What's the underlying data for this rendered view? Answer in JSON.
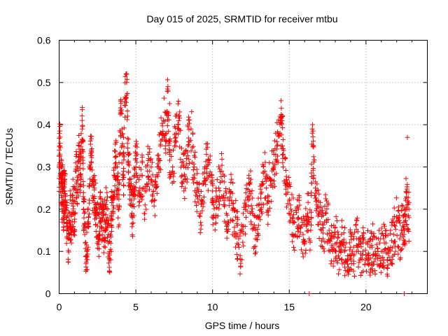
{
  "chart_data": {
    "type": "scatter",
    "title": "Day 015 of 2025, SRMTID for receiver mtbu",
    "xlabel": "GPS time / hours",
    "ylabel": "SRMTID / TECUs",
    "xlim": [
      0,
      24
    ],
    "ylim": [
      0,
      0.6
    ],
    "x_ticks": [
      0,
      5,
      10,
      15,
      20
    ],
    "x_tick_labels": [
      "0",
      "5",
      "10",
      "15",
      "20"
    ],
    "y_ticks": [
      0,
      0.1,
      0.2,
      0.3,
      0.4,
      0.5,
      0.6
    ],
    "y_tick_labels": [
      "0",
      "0.1",
      "0.2",
      "0.3",
      "0.4",
      "0.5",
      "0.6"
    ],
    "grid": true,
    "marker": "+",
    "marker_color": "#ff0000",
    "series": [
      {
        "name": "SRMTID",
        "x": [
          0.0,
          0.05,
          0.1,
          0.15,
          0.2,
          0.25,
          0.3,
          0.35,
          0.4,
          0.5,
          0.6,
          0.7,
          0.8,
          0.9,
          1.0,
          1.1,
          1.2,
          1.3,
          1.4,
          1.5,
          1.55,
          1.6,
          1.7,
          1.8,
          1.9,
          2.0,
          2.1,
          2.2,
          2.3,
          2.4,
          2.5,
          2.6,
          2.7,
          2.8,
          2.9,
          3.0,
          3.1,
          3.2,
          3.3,
          3.4,
          3.5,
          3.6,
          3.7,
          3.8,
          3.9,
          4.0,
          4.1,
          4.2,
          4.3,
          4.4,
          4.5,
          4.6,
          4.7,
          4.8,
          4.9,
          5.0,
          5.2,
          5.4,
          5.6,
          5.8,
          6.0,
          6.2,
          6.4,
          6.6,
          6.8,
          7.0,
          7.1,
          7.2,
          7.4,
          7.6,
          7.8,
          8.0,
          8.2,
          8.4,
          8.6,
          8.8,
          9.0,
          9.2,
          9.4,
          9.6,
          9.8,
          10.0,
          10.2,
          10.4,
          10.6,
          10.8,
          11.0,
          11.2,
          11.4,
          11.6,
          11.8,
          12.0,
          12.2,
          12.4,
          12.6,
          12.8,
          13.0,
          13.2,
          13.4,
          13.6,
          13.8,
          14.0,
          14.2,
          14.4,
          14.5,
          14.6,
          14.8,
          15.0,
          15.2,
          15.4,
          15.6,
          15.8,
          16.0,
          16.2,
          16.4,
          16.5,
          16.6,
          16.8,
          17.0,
          17.2,
          17.4,
          17.6,
          17.8,
          18.0,
          18.2,
          18.4,
          18.6,
          18.8,
          19.0,
          19.2,
          19.4,
          19.6,
          19.8,
          20.0,
          20.2,
          20.4,
          20.6,
          20.8,
          21.0,
          21.2,
          21.4,
          21.6,
          21.8,
          22.0,
          22.2,
          22.4,
          22.5,
          22.6,
          22.7,
          22.8
        ],
        "y": [
          0.3,
          0.35,
          0.24,
          0.28,
          0.21,
          0.26,
          0.19,
          0.27,
          0.23,
          0.16,
          0.13,
          0.19,
          0.15,
          0.22,
          0.17,
          0.29,
          0.24,
          0.33,
          0.27,
          0.41,
          0.36,
          0.2,
          0.12,
          0.09,
          0.17,
          0.3,
          0.34,
          0.22,
          0.25,
          0.2,
          0.16,
          0.14,
          0.21,
          0.18,
          0.15,
          0.17,
          0.22,
          0.12,
          0.08,
          0.19,
          0.23,
          0.28,
          0.31,
          0.25,
          0.2,
          0.44,
          0.35,
          0.29,
          0.46,
          0.5,
          0.33,
          0.27,
          0.22,
          0.18,
          0.25,
          0.32,
          0.24,
          0.28,
          0.21,
          0.33,
          0.27,
          0.22,
          0.3,
          0.35,
          0.41,
          0.38,
          0.48,
          0.33,
          0.29,
          0.37,
          0.42,
          0.31,
          0.27,
          0.35,
          0.39,
          0.3,
          0.23,
          0.19,
          0.26,
          0.33,
          0.28,
          0.22,
          0.18,
          0.25,
          0.29,
          0.21,
          0.17,
          0.24,
          0.2,
          0.14,
          0.09,
          0.16,
          0.21,
          0.26,
          0.19,
          0.13,
          0.18,
          0.24,
          0.29,
          0.22,
          0.27,
          0.3,
          0.35,
          0.38,
          0.42,
          0.33,
          0.27,
          0.22,
          0.18,
          0.14,
          0.2,
          0.16,
          0.12,
          0.19,
          0.15,
          0.38,
          0.28,
          0.21,
          0.17,
          0.13,
          0.19,
          0.15,
          0.11,
          0.14,
          0.09,
          0.12,
          0.1,
          0.07,
          0.11,
          0.09,
          0.13,
          0.08,
          0.1,
          0.12,
          0.07,
          0.11,
          0.09,
          0.13,
          0.1,
          0.12,
          0.08,
          0.11,
          0.14,
          0.17,
          0.13,
          0.16,
          0.12,
          0.22,
          0.2,
          0.18
        ],
        "markers": [
          [
            0,
            0.34
          ],
          [
            0.1,
            0.26
          ],
          [
            0.2,
            0.3
          ],
          [
            0.3,
            0.29
          ],
          [
            0.4,
            0.21
          ],
          [
            0.5,
            0.18
          ],
          [
            0.6,
            0.15
          ],
          [
            0.7,
            0.17
          ],
          [
            0.8,
            0.12
          ],
          [
            1.0,
            0.25
          ],
          [
            1.2,
            0.3
          ],
          [
            1.3,
            0.35
          ],
          [
            1.5,
            0.39
          ],
          [
            1.6,
            0.16
          ],
          [
            1.8,
            0.1
          ],
          [
            2.0,
            0.26
          ],
          [
            2.1,
            0.31
          ],
          [
            2.3,
            0.23
          ],
          [
            2.5,
            0.19
          ],
          [
            2.7,
            0.17
          ],
          [
            2.9,
            0.13
          ],
          [
            3.0,
            0.11
          ],
          [
            3.2,
            0.14
          ],
          [
            3.4,
            0.1
          ],
          [
            3.5,
            0.24
          ],
          [
            3.7,
            0.27
          ],
          [
            3.9,
            0.31
          ],
          [
            4.0,
            0.44
          ],
          [
            4.1,
            0.39
          ],
          [
            4.2,
            0.37
          ],
          [
            4.4,
            0.47
          ],
          [
            4.5,
            0.31
          ],
          [
            4.7,
            0.26
          ],
          [
            4.9,
            0.28
          ],
          [
            5.0,
            0.3
          ],
          [
            5.2,
            0.27
          ],
          [
            5.5,
            0.25
          ],
          [
            5.8,
            0.26
          ],
          [
            6.0,
            0.3
          ],
          [
            6.3,
            0.25
          ],
          [
            6.5,
            0.32
          ],
          [
            6.7,
            0.38
          ],
          [
            6.9,
            0.43
          ],
          [
            7.0,
            0.36
          ],
          [
            7.2,
            0.45
          ],
          [
            7.4,
            0.3
          ],
          [
            7.6,
            0.35
          ],
          [
            7.8,
            0.39
          ],
          [
            8.0,
            0.28
          ],
          [
            8.3,
            0.32
          ],
          [
            8.5,
            0.36
          ],
          [
            8.7,
            0.27
          ],
          [
            9.0,
            0.25
          ],
          [
            9.3,
            0.22
          ],
          [
            9.5,
            0.3
          ],
          [
            9.8,
            0.31
          ],
          [
            10.0,
            0.26
          ],
          [
            10.3,
            0.27
          ],
          [
            10.6,
            0.23
          ],
          [
            10.9,
            0.19
          ],
          [
            11.1,
            0.22
          ],
          [
            11.3,
            0.14
          ],
          [
            11.5,
            0.11
          ],
          [
            11.7,
            0.13
          ],
          [
            12.0,
            0.19
          ],
          [
            12.3,
            0.23
          ],
          [
            12.5,
            0.17
          ],
          [
            12.8,
            0.15
          ],
          [
            13.0,
            0.21
          ],
          [
            13.3,
            0.26
          ],
          [
            13.5,
            0.25
          ],
          [
            13.7,
            0.31
          ],
          [
            14.0,
            0.33
          ],
          [
            14.2,
            0.36
          ],
          [
            14.4,
            0.42
          ],
          [
            14.6,
            0.3
          ],
          [
            14.9,
            0.24
          ],
          [
            15.1,
            0.2
          ],
          [
            15.3,
            0.17
          ],
          [
            15.6,
            0.18
          ],
          [
            15.9,
            0.14
          ],
          [
            16.1,
            0.16
          ],
          [
            16.3,
            0.13
          ],
          [
            16.5,
            0.39
          ],
          [
            16.7,
            0.25
          ],
          [
            16.9,
            0.19
          ],
          [
            17.1,
            0.15
          ],
          [
            17.3,
            0.17
          ],
          [
            17.5,
            0.12
          ],
          [
            17.7,
            0.13
          ],
          [
            18.0,
            0.1
          ],
          [
            18.2,
            0.14
          ],
          [
            18.4,
            0.08
          ],
          [
            18.7,
            0.12
          ],
          [
            19.0,
            0.08
          ],
          [
            19.2,
            0.11
          ],
          [
            19.5,
            0.1
          ],
          [
            19.8,
            0.12
          ],
          [
            20.1,
            0.09
          ],
          [
            20.3,
            0.13
          ],
          [
            20.6,
            0.1
          ],
          [
            20.9,
            0.12
          ],
          [
            21.1,
            0.1
          ],
          [
            21.3,
            0.12
          ],
          [
            21.6,
            0.15
          ],
          [
            21.9,
            0.16
          ],
          [
            22.1,
            0.18
          ],
          [
            22.3,
            0.15
          ],
          [
            22.5,
            0.2
          ],
          [
            22.7,
            0.37
          ],
          [
            22.8,
            0.2
          ]
        ],
        "zero_markers": [
          16.3,
          22.5
        ]
      }
    ]
  }
}
